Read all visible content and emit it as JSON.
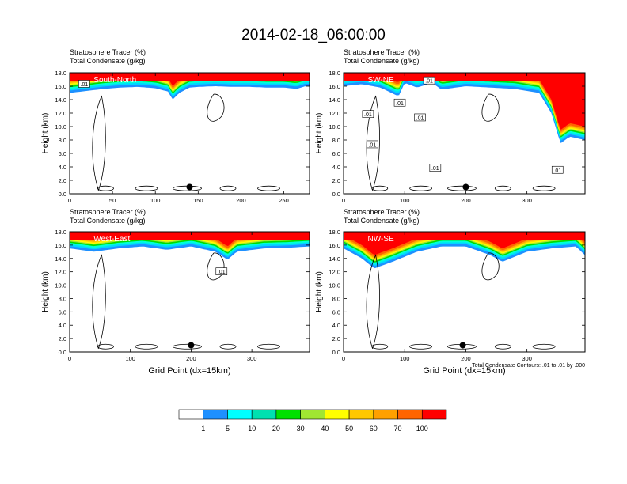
{
  "title": "2014-02-18_06:00:00",
  "panel_header": {
    "line1_label": "Stratosphere Tracer",
    "line1_unit": "(%)",
    "line2_label": "Total Condensate",
    "line2_unit": "(g/kg)"
  },
  "ylabel": "Height (km)",
  "xlabel": "Grid Point (dx=15km)",
  "contour_note": "Total Condensate Contours: .01 to .01 by .000",
  "colors": {
    "levels": [
      "#ffffff",
      "#1e90ff",
      "#00d7ff",
      "#00ffd7",
      "#00f078",
      "#00dc00",
      "#a0e632",
      "#ffff00",
      "#ffd700",
      "#ffa500",
      "#ff6400",
      "#ff0000"
    ]
  },
  "colorbar": {
    "colors": [
      "#ffffff",
      "#1e90ff",
      "#00ffff",
      "#00e0b0",
      "#00e000",
      "#a0e632",
      "#ffff00",
      "#ffc800",
      "#ffa000",
      "#ff6400",
      "#ff0000"
    ],
    "labels": [
      "1",
      "5",
      "10",
      "20",
      "30",
      "40",
      "50",
      "60",
      "70",
      "100"
    ]
  },
  "chart_data": [
    {
      "type": "heatmap",
      "label": "South-North",
      "xlim": [
        0,
        280
      ],
      "ylim": [
        0,
        18
      ],
      "xticks": [
        0,
        50,
        100,
        150,
        200,
        250
      ],
      "yticks": [
        "0.0",
        "2.0",
        "4.0",
        "6.0",
        "8.0",
        "10.0",
        "12.0",
        "14.0",
        "16.0",
        "18.0"
      ],
      "marker": [
        140,
        1.0
      ],
      "contour_labels": [
        {
          "text": ".01",
          "x": 17,
          "y": 16.3
        }
      ],
      "tracer_top_km": [
        [
          0,
          15.0
        ],
        [
          20,
          15.3
        ],
        [
          40,
          15.6
        ],
        [
          60,
          15.8
        ],
        [
          80,
          15.9
        ],
        [
          100,
          15.7
        ],
        [
          115,
          15.2
        ],
        [
          120,
          14.0
        ],
        [
          128,
          15.0
        ],
        [
          140,
          15.8
        ],
        [
          150,
          15.9
        ],
        [
          170,
          16.0
        ],
        [
          190,
          15.9
        ],
        [
          210,
          15.9
        ],
        [
          230,
          15.8
        ],
        [
          250,
          15.8
        ],
        [
          265,
          15.6
        ],
        [
          275,
          16.0
        ]
      ]
    },
    {
      "type": "heatmap",
      "label": "SW-NE",
      "xlim": [
        0,
        395
      ],
      "ylim": [
        0,
        18
      ],
      "xticks": [
        0,
        100,
        200,
        300
      ],
      "yticks": [
        "0.0",
        "2.0",
        "4.0",
        "6.0",
        "8.0",
        "10.0",
        "12.0",
        "14.0",
        "16.0",
        "18.0"
      ],
      "marker": [
        200,
        1.0
      ],
      "contour_labels": [
        {
          "text": ".01",
          "x": 140,
          "y": 16.8
        },
        {
          "text": ".01",
          "x": 92,
          "y": 13.5
        },
        {
          "text": ".01",
          "x": 40,
          "y": 11.8
        },
        {
          "text": ".01",
          "x": 125,
          "y": 11.3
        },
        {
          "text": ".01",
          "x": 47,
          "y": 7.3
        },
        {
          "text": ".01",
          "x": 150,
          "y": 3.8
        },
        {
          "text": ".01",
          "x": 350,
          "y": 3.5
        }
      ],
      "tracer_top_km": [
        [
          0,
          16.0
        ],
        [
          30,
          16.3
        ],
        [
          60,
          15.8
        ],
        [
          90,
          14.5
        ],
        [
          100,
          16.5
        ],
        [
          120,
          15.8
        ],
        [
          145,
          16.5
        ],
        [
          160,
          15.5
        ],
        [
          200,
          16.0
        ],
        [
          240,
          15.8
        ],
        [
          280,
          15.6
        ],
        [
          320,
          15.0
        ],
        [
          340,
          12.0
        ],
        [
          355,
          7.5
        ],
        [
          370,
          8.5
        ],
        [
          395,
          8.0
        ]
      ]
    },
    {
      "type": "heatmap",
      "label": "West-East",
      "xlim": [
        0,
        395
      ],
      "ylim": [
        0,
        18
      ],
      "xticks": [
        0,
        100,
        200,
        300
      ],
      "yticks": [
        "0.0",
        "2.0",
        "4.0",
        "6.0",
        "8.0",
        "10.0",
        "12.0",
        "14.0",
        "16.0",
        "18.0"
      ],
      "marker": [
        200,
        1.0
      ],
      "contour_labels": [
        {
          "text": ".01",
          "x": 250,
          "y": 12.0
        }
      ],
      "tracer_top_km": [
        [
          0,
          15.5
        ],
        [
          40,
          15.0
        ],
        [
          80,
          15.5
        ],
        [
          120,
          15.8
        ],
        [
          160,
          15.3
        ],
        [
          200,
          15.8
        ],
        [
          240,
          15.0
        ],
        [
          260,
          13.8
        ],
        [
          275,
          15.0
        ],
        [
          320,
          15.5
        ],
        [
          360,
          15.6
        ],
        [
          395,
          15.8
        ]
      ]
    },
    {
      "type": "heatmap",
      "label": "NW-SE",
      "xlim": [
        0,
        395
      ],
      "ylim": [
        0,
        18
      ],
      "xticks": [
        0,
        100,
        200,
        300
      ],
      "yticks": [
        "0.0",
        "2.0",
        "4.0",
        "6.0",
        "8.0",
        "10.0",
        "12.0",
        "14.0",
        "16.0",
        "18.0"
      ],
      "marker": [
        195,
        1.0
      ],
      "contour_labels": [],
      "tracer_top_km": [
        [
          0,
          15.5
        ],
        [
          30,
          14.0
        ],
        [
          50,
          12.5
        ],
        [
          80,
          13.5
        ],
        [
          120,
          15.0
        ],
        [
          160,
          15.8
        ],
        [
          200,
          15.8
        ],
        [
          240,
          14.5
        ],
        [
          260,
          13.5
        ],
        [
          300,
          15.0
        ],
        [
          340,
          15.5
        ],
        [
          380,
          15.8
        ],
        [
          395,
          14.5
        ]
      ]
    }
  ]
}
